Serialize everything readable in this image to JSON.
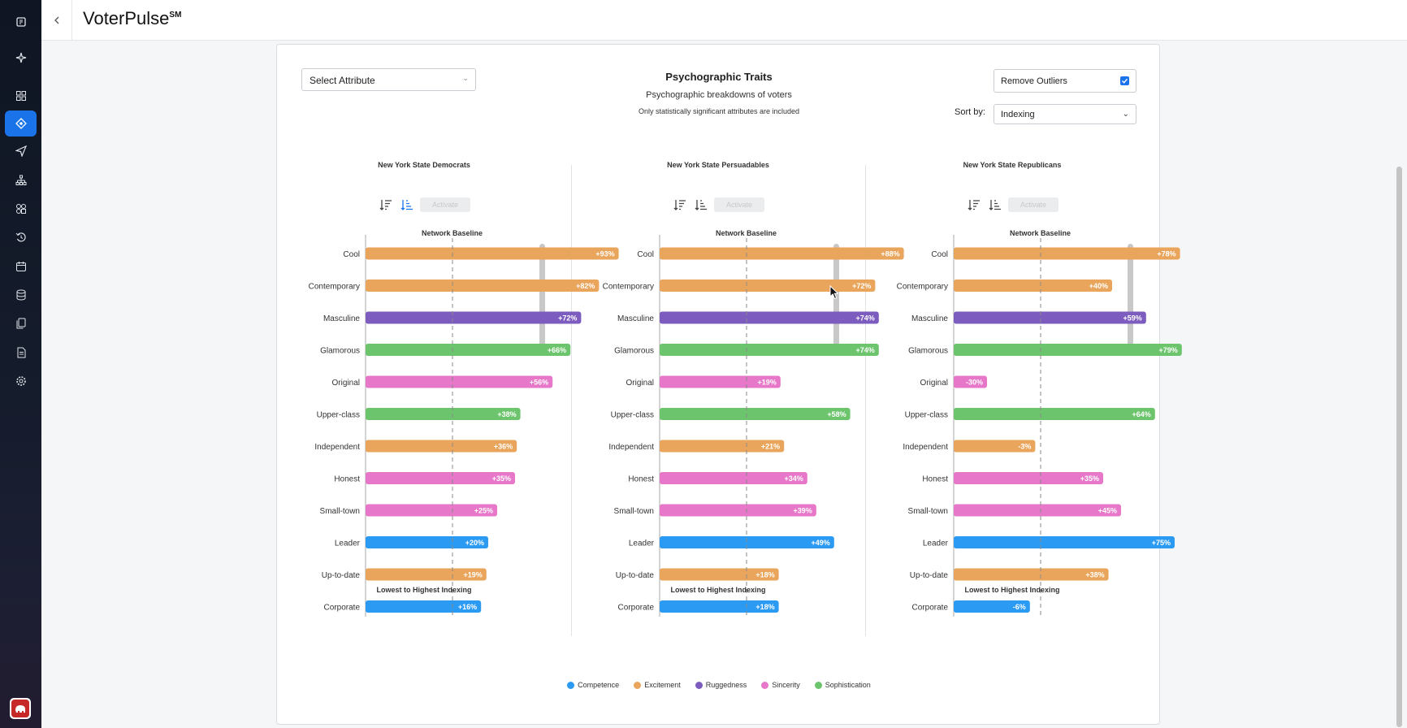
{
  "app": {
    "title": "VoterPulse",
    "title_sup": "SM"
  },
  "nav": {
    "items": [
      {
        "name": "dashboard-icon"
      },
      {
        "name": "sparkle-icon"
      },
      {
        "name": "grid-icon"
      },
      {
        "name": "target-icon",
        "active": true
      },
      {
        "name": "send-icon"
      },
      {
        "name": "org-chart-icon"
      },
      {
        "name": "segments-icon"
      },
      {
        "name": "history-icon"
      },
      {
        "name": "calendar-icon"
      },
      {
        "name": "database-icon"
      },
      {
        "name": "documents-icon"
      },
      {
        "name": "report-icon"
      },
      {
        "name": "settings-icon"
      }
    ]
  },
  "controls": {
    "select_attribute": "Select Attribute",
    "remove_outliers": "Remove Outliers",
    "remove_outliers_checked": true,
    "sort_by_label": "Sort by:",
    "sort_by_value": "Indexing"
  },
  "card": {
    "title": "Psychographic Traits",
    "subtitle": "Psychographic breakdowns of voters",
    "note": "Only statistically significant attributes are included"
  },
  "panel_common": {
    "activate_label": "Activate",
    "baseline_label": "Network Baseline",
    "footer": "Lowest to Highest Indexing"
  },
  "colors": {
    "Competence": "#2b9af3",
    "Excitement": "#e9a55b",
    "Ruggedness": "#7c5cbf",
    "Sincerity": "#e777c8",
    "Sophistication": "#6cc46c"
  },
  "legend": [
    "Competence",
    "Excitement",
    "Ruggedness",
    "Sincerity",
    "Sophistication"
  ],
  "chart_data": [
    {
      "type": "bar",
      "title": "New York State Democrats",
      "categories": [
        "Cool",
        "Contemporary",
        "Masculine",
        "Glamorous",
        "Original",
        "Upper-class",
        "Independent",
        "Honest",
        "Small-town",
        "Leader",
        "Up-to-date",
        "Corporate"
      ],
      "groups": [
        "Excitement",
        "Excitement",
        "Ruggedness",
        "Sophistication",
        "Sincerity",
        "Sophistication",
        "Excitement",
        "Sincerity",
        "Sincerity",
        "Competence",
        "Excitement",
        "Competence"
      ],
      "values": [
        93,
        82,
        72,
        66,
        56,
        38,
        36,
        35,
        25,
        20,
        19,
        16
      ],
      "labels": [
        "+93%",
        "+82%",
        "+72%",
        "+66%",
        "+56%",
        "+38%",
        "+36%",
        "+35%",
        "+25%",
        "+20%",
        "+19%",
        "+16%"
      ]
    },
    {
      "type": "bar",
      "title": "New York State Persuadables",
      "categories": [
        "Cool",
        "Contemporary",
        "Masculine",
        "Glamorous",
        "Original",
        "Upper-class",
        "Independent",
        "Honest",
        "Small-town",
        "Leader",
        "Up-to-date",
        "Corporate"
      ],
      "groups": [
        "Excitement",
        "Excitement",
        "Ruggedness",
        "Sophistication",
        "Sincerity",
        "Sophistication",
        "Excitement",
        "Sincerity",
        "Sincerity",
        "Competence",
        "Excitement",
        "Competence"
      ],
      "values": [
        88,
        72,
        74,
        74,
        19,
        58,
        21,
        34,
        39,
        49,
        18,
        18
      ],
      "labels": [
        "+88%",
        "+72%",
        "+74%",
        "+74%",
        "+19%",
        "+58%",
        "+21%",
        "+34%",
        "+39%",
        "+49%",
        "+18%",
        "+18%"
      ]
    },
    {
      "type": "bar",
      "title": "New York State Republicans",
      "categories": [
        "Cool",
        "Contemporary",
        "Masculine",
        "Glamorous",
        "Original",
        "Upper-class",
        "Independent",
        "Honest",
        "Small-town",
        "Leader",
        "Up-to-date",
        "Corporate"
      ],
      "groups": [
        "Excitement",
        "Excitement",
        "Ruggedness",
        "Sophistication",
        "Sincerity",
        "Sophistication",
        "Excitement",
        "Sincerity",
        "Sincerity",
        "Competence",
        "Excitement",
        "Competence"
      ],
      "values": [
        78,
        40,
        59,
        79,
        -30,
        64,
        -3,
        35,
        45,
        75,
        38,
        -6
      ],
      "labels": [
        "+78%",
        "+40%",
        "+59%",
        "+79%",
        "-30%",
        "+64%",
        "-3%",
        "+35%",
        "+45%",
        "+75%",
        "+38%",
        "-6%"
      ]
    }
  ]
}
